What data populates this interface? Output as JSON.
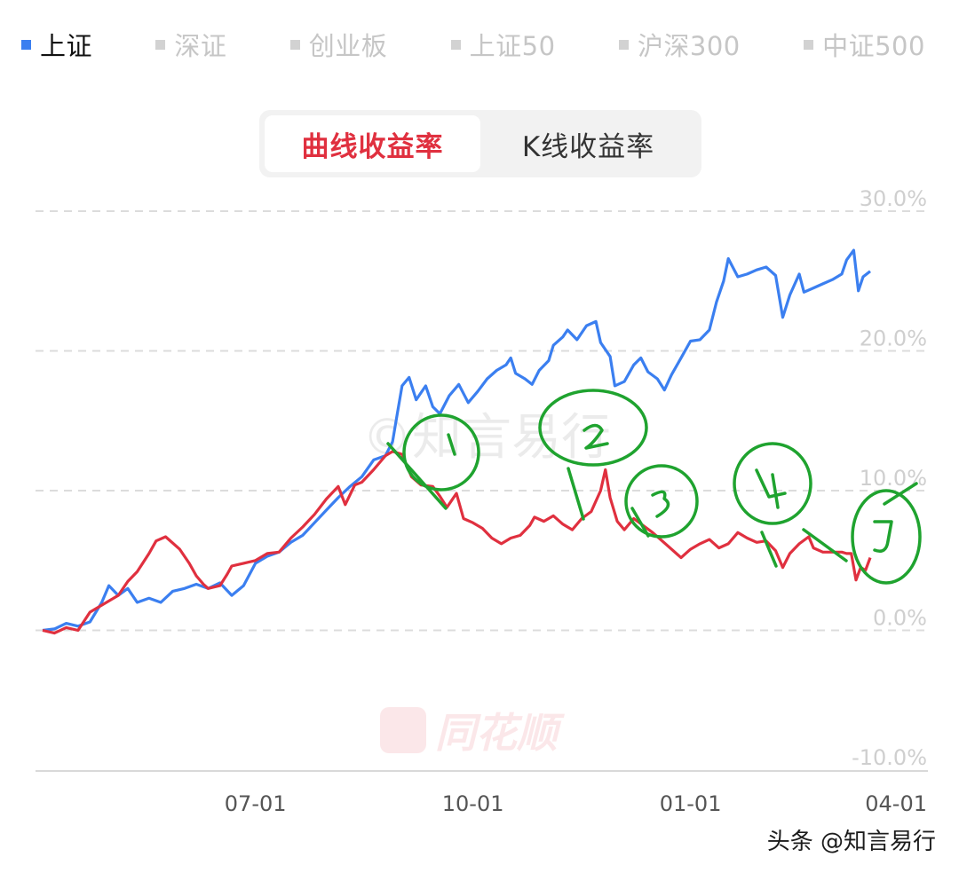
{
  "legend": {
    "items": [
      {
        "label": "上证",
        "color": "#3b7ff0",
        "active": true
      },
      {
        "label": "深证",
        "color": "#d2d2d2",
        "active": false
      },
      {
        "label": "创业板",
        "color": "#d2d2d2",
        "active": false
      },
      {
        "label": "上证50",
        "color": "#d2d2d2",
        "active": false
      },
      {
        "label": "沪深300",
        "color": "#d2d2d2",
        "active": false
      },
      {
        "label": "中证500",
        "color": "#d2d2d2",
        "active": false
      }
    ]
  },
  "toggle": {
    "curve_label": "曲线收益率",
    "kline_label": "K线收益率",
    "active": "curve"
  },
  "watermark_text": "©知言易行",
  "logo_text": "同花顺",
  "credit": "头条 @知言易行",
  "chart_data": {
    "type": "line",
    "ylim": [
      -10,
      30
    ],
    "yticks": [
      30,
      20,
      10,
      0,
      -10
    ],
    "ytick_labels": [
      "30.0%",
      "20.0%",
      "10.0%",
      "0.0%",
      "-10.0%"
    ],
    "xlim": [
      0,
      350
    ],
    "xticks": [
      90,
      182,
      274,
      364
    ],
    "xtick_labels": [
      "07-01",
      "10-01",
      "01-01",
      "04-01"
    ],
    "grid": true,
    "series": [
      {
        "color": "#3b7ff0",
        "points": [
          [
            0,
            0
          ],
          [
            5,
            0.1
          ],
          [
            10,
            0.5
          ],
          [
            15,
            0.3
          ],
          [
            20,
            0.6
          ],
          [
            25,
            2.0
          ],
          [
            28,
            3.2
          ],
          [
            32,
            2.5
          ],
          [
            36,
            3.0
          ],
          [
            40,
            2.0
          ],
          [
            45,
            2.3
          ],
          [
            50,
            2.0
          ],
          [
            55,
            2.8
          ],
          [
            60,
            3.0
          ],
          [
            65,
            3.3
          ],
          [
            70,
            3.0
          ],
          [
            75,
            3.4
          ],
          [
            80,
            2.5
          ],
          [
            85,
            3.2
          ],
          [
            90,
            4.8
          ],
          [
            95,
            5.3
          ],
          [
            100,
            5.6
          ],
          [
            105,
            6.3
          ],
          [
            110,
            6.8
          ],
          [
            115,
            7.7
          ],
          [
            120,
            8.6
          ],
          [
            125,
            9.5
          ],
          [
            130,
            10.3
          ],
          [
            135,
            11.0
          ],
          [
            140,
            12.2
          ],
          [
            145,
            12.5
          ],
          [
            148,
            13.5
          ],
          [
            150,
            15.5
          ],
          [
            152,
            17.5
          ],
          [
            155,
            18.1
          ],
          [
            158,
            16.5
          ],
          [
            162,
            17.5
          ],
          [
            165,
            16.0
          ],
          [
            168,
            15.5
          ],
          [
            172,
            16.8
          ],
          [
            176,
            17.6
          ],
          [
            180,
            16.3
          ],
          [
            184,
            17.1
          ],
          [
            188,
            18.0
          ],
          [
            192,
            18.6
          ],
          [
            196,
            19.0
          ],
          [
            198,
            19.5
          ],
          [
            200,
            18.4
          ],
          [
            204,
            18.0
          ],
          [
            207,
            17.6
          ],
          [
            210,
            18.6
          ],
          [
            214,
            19.3
          ],
          [
            216,
            20.4
          ],
          [
            220,
            21.0
          ],
          [
            222,
            21.5
          ],
          [
            226,
            20.8
          ],
          [
            230,
            21.8
          ],
          [
            234,
            22.1
          ],
          [
            236,
            20.6
          ],
          [
            240,
            19.6
          ],
          [
            242,
            17.5
          ],
          [
            246,
            17.8
          ],
          [
            250,
            19.0
          ],
          [
            253,
            19.5
          ],
          [
            256,
            18.5
          ],
          [
            260,
            18.0
          ],
          [
            263,
            17.2
          ],
          [
            266,
            18.3
          ],
          [
            270,
            19.5
          ],
          [
            274,
            20.7
          ],
          [
            278,
            20.8
          ],
          [
            282,
            21.5
          ],
          [
            285,
            23.5
          ],
          [
            288,
            25.0
          ],
          [
            290,
            26.6
          ],
          [
            294,
            25.3
          ],
          [
            298,
            25.5
          ],
          [
            302,
            25.8
          ],
          [
            306,
            26.0
          ],
          [
            310,
            25.4
          ],
          [
            313,
            22.4
          ],
          [
            316,
            24.0
          ],
          [
            320,
            25.5
          ],
          [
            322,
            24.2
          ],
          [
            326,
            24.5
          ],
          [
            330,
            24.8
          ],
          [
            334,
            25.1
          ],
          [
            338,
            25.5
          ],
          [
            340,
            26.5
          ],
          [
            343,
            27.2
          ],
          [
            345,
            24.3
          ],
          [
            347,
            25.3
          ],
          [
            350,
            25.7
          ]
        ]
      },
      {
        "color": "#e0303f",
        "points": [
          [
            0,
            0
          ],
          [
            5,
            -0.2
          ],
          [
            10,
            0.2
          ],
          [
            15,
            0.0
          ],
          [
            20,
            1.3
          ],
          [
            25,
            1.8
          ],
          [
            28,
            2.1
          ],
          [
            32,
            2.5
          ],
          [
            36,
            3.5
          ],
          [
            40,
            4.2
          ],
          [
            45,
            5.5
          ],
          [
            48,
            6.4
          ],
          [
            52,
            6.7
          ],
          [
            58,
            5.8
          ],
          [
            62,
            4.8
          ],
          [
            65,
            3.9
          ],
          [
            68,
            3.3
          ],
          [
            70,
            3.0
          ],
          [
            75,
            3.2
          ],
          [
            78,
            4.0
          ],
          [
            80,
            4.6
          ],
          [
            85,
            4.8
          ],
          [
            90,
            5.0
          ],
          [
            95,
            5.5
          ],
          [
            100,
            5.6
          ],
          [
            105,
            6.6
          ],
          [
            110,
            7.4
          ],
          [
            115,
            8.3
          ],
          [
            120,
            9.4
          ],
          [
            125,
            10.3
          ],
          [
            128,
            9.0
          ],
          [
            132,
            10.4
          ],
          [
            135,
            10.6
          ],
          [
            140,
            11.5
          ],
          [
            145,
            12.5
          ],
          [
            148,
            12.8
          ],
          [
            152,
            12.6
          ],
          [
            156,
            11.0
          ],
          [
            160,
            10.4
          ],
          [
            165,
            10.3
          ],
          [
            168,
            9.6
          ],
          [
            171,
            8.8
          ],
          [
            175,
            9.8
          ],
          [
            178,
            8.0
          ],
          [
            182,
            7.7
          ],
          [
            186,
            7.3
          ],
          [
            190,
            6.6
          ],
          [
            194,
            6.2
          ],
          [
            198,
            6.6
          ],
          [
            202,
            6.8
          ],
          [
            206,
            7.5
          ],
          [
            208,
            8.1
          ],
          [
            212,
            7.8
          ],
          [
            216,
            8.2
          ],
          [
            220,
            7.6
          ],
          [
            224,
            7.2
          ],
          [
            228,
            8.0
          ],
          [
            232,
            8.5
          ],
          [
            236,
            10.0
          ],
          [
            238,
            11.5
          ],
          [
            240,
            9.5
          ],
          [
            243,
            7.8
          ],
          [
            246,
            7.2
          ],
          [
            250,
            8.0
          ],
          [
            254,
            7.5
          ],
          [
            258,
            7.0
          ],
          [
            262,
            6.4
          ],
          [
            266,
            5.8
          ],
          [
            270,
            5.2
          ],
          [
            274,
            5.8
          ],
          [
            278,
            6.2
          ],
          [
            282,
            6.5
          ],
          [
            286,
            5.9
          ],
          [
            290,
            6.2
          ],
          [
            294,
            7.0
          ],
          [
            298,
            6.6
          ],
          [
            302,
            6.3
          ],
          [
            306,
            6.4
          ],
          [
            310,
            5.7
          ],
          [
            313,
            4.5
          ],
          [
            316,
            5.5
          ],
          [
            320,
            6.2
          ],
          [
            324,
            6.7
          ],
          [
            326,
            5.9
          ],
          [
            330,
            5.6
          ],
          [
            334,
            5.6
          ],
          [
            338,
            5.6
          ],
          [
            340,
            5.5
          ],
          [
            342,
            5.5
          ],
          [
            344,
            3.6
          ],
          [
            346,
            4.5
          ],
          [
            348,
            4.3
          ],
          [
            350,
            5.2
          ]
        ]
      }
    ],
    "annotations": [
      "1",
      "2",
      "3",
      "4",
      "5"
    ]
  }
}
